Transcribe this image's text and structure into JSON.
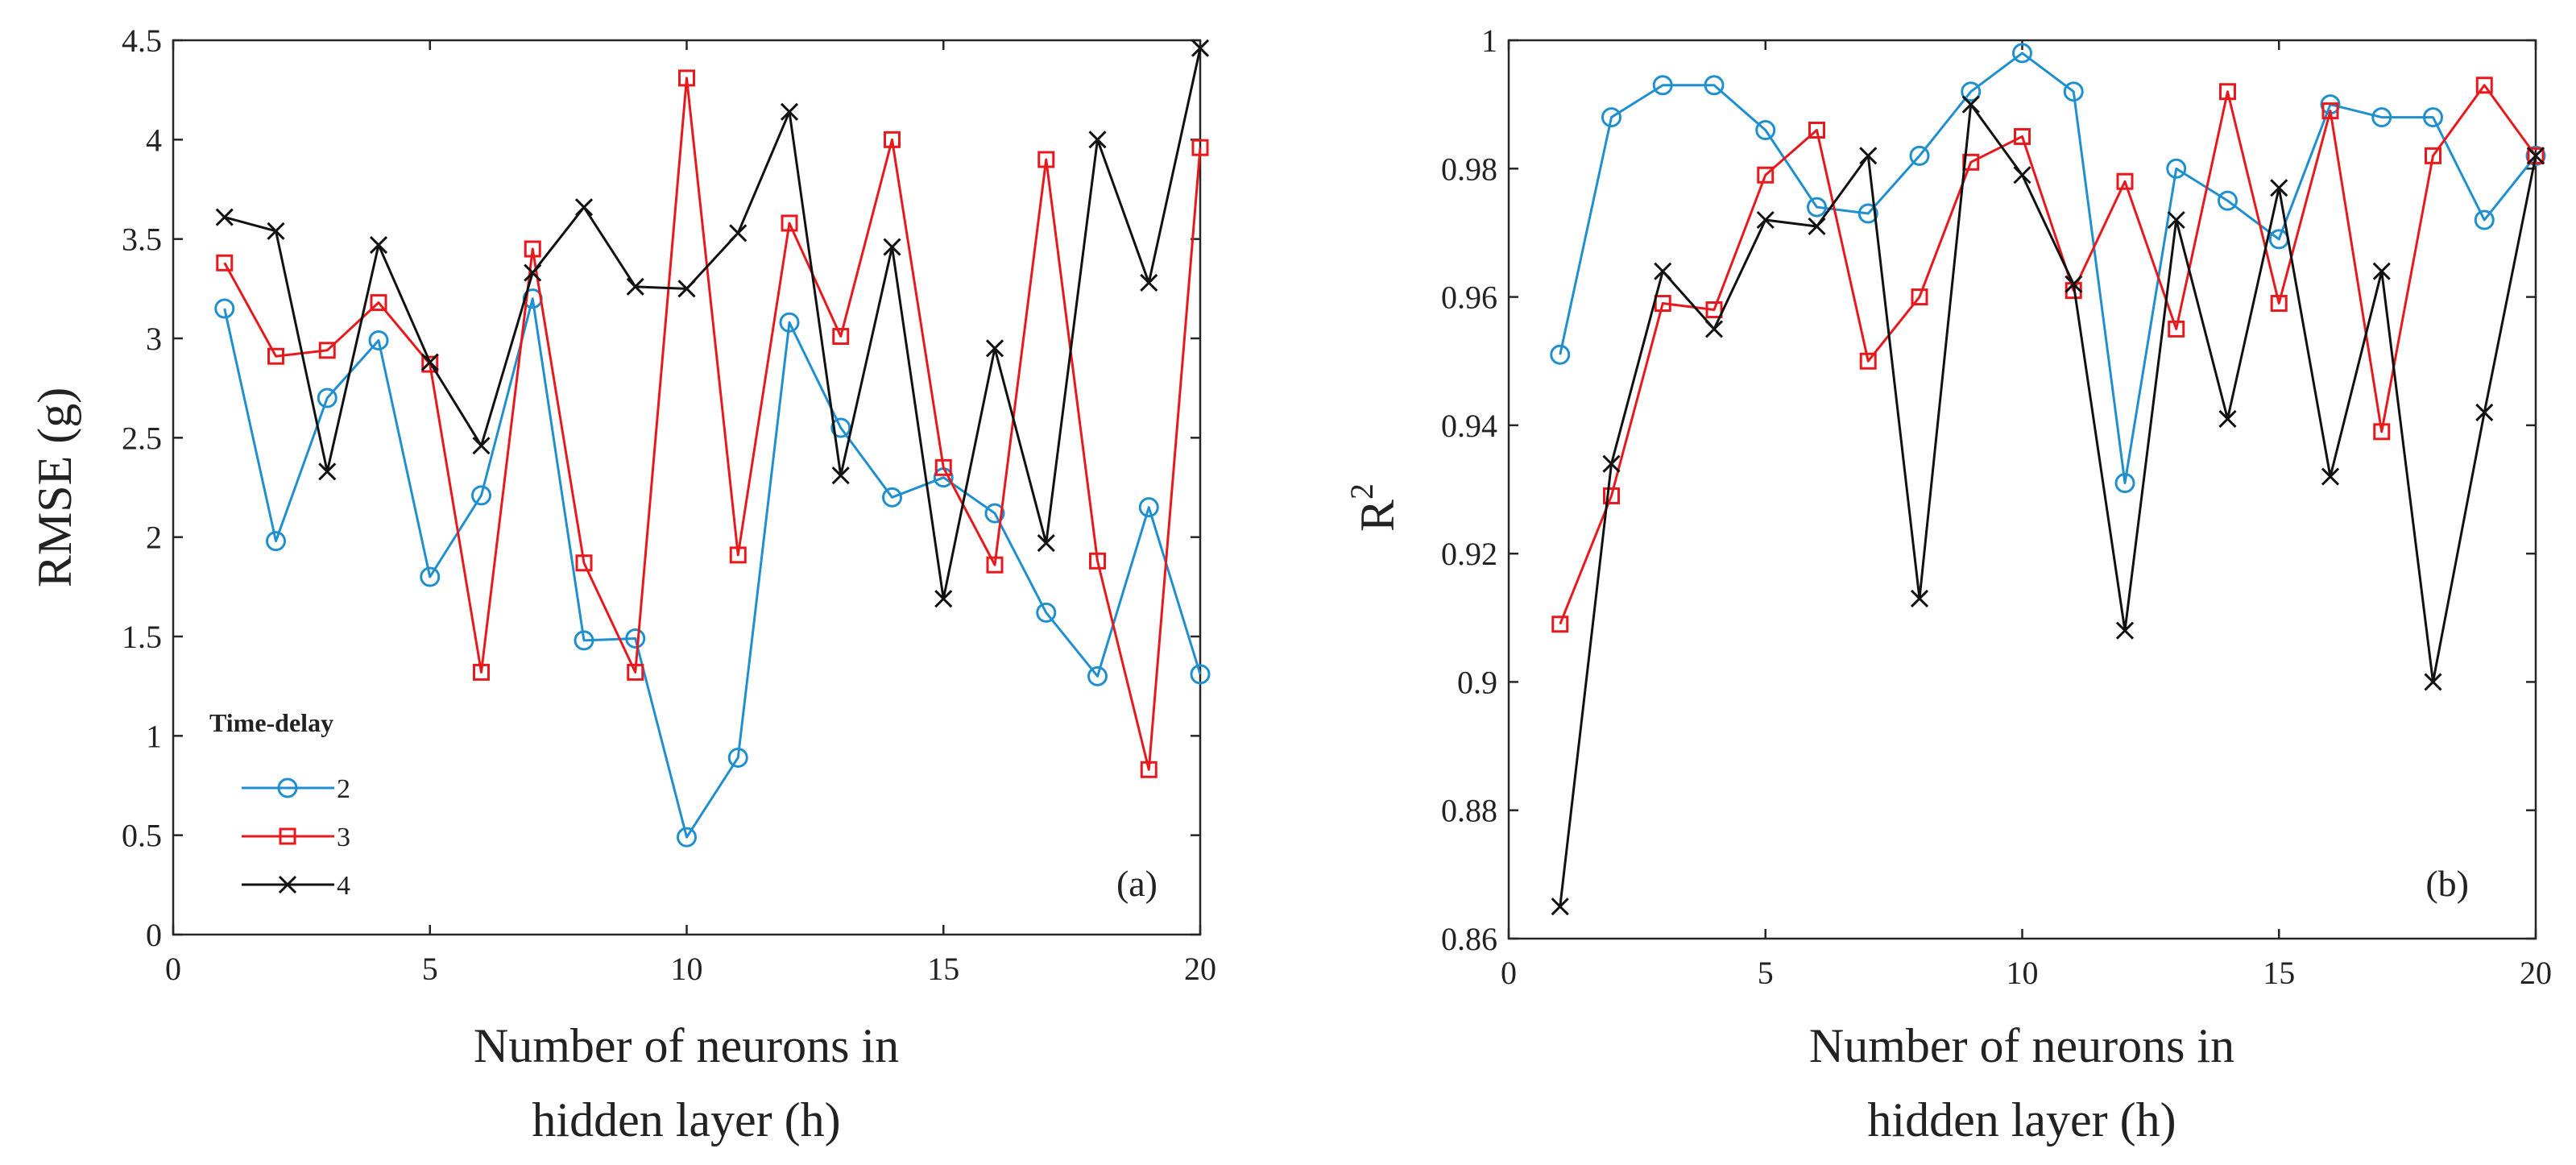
{
  "chart_data": [
    {
      "type": "line",
      "panel_label": "(a)",
      "xlabel": [
        "Number of neurons in",
        "hidden layer (h)"
      ],
      "ylabel": "RMSE (g)",
      "xlim": [
        0,
        20
      ],
      "ylim": [
        0,
        4.5
      ],
      "xticks": [
        0,
        5,
        10,
        15,
        20
      ],
      "xtick_labels": [
        "0",
        "5",
        "10",
        "15",
        "20"
      ],
      "yticks": [
        0,
        0.5,
        1,
        1.5,
        2,
        2.5,
        3,
        3.5,
        4,
        4.5
      ],
      "ytick_labels": [
        "0",
        "0.5",
        "1",
        "1.5",
        "2",
        "2.5",
        "3",
        "3.5",
        "4",
        "4.5"
      ],
      "grid": false,
      "legend": {
        "title": "Time-delay",
        "placement": "bottom-left"
      },
      "x": [
        1,
        2,
        3,
        4,
        5,
        6,
        7,
        8,
        9,
        10,
        11,
        12,
        13,
        14,
        15,
        16,
        17,
        18,
        19,
        20
      ],
      "series": [
        {
          "name": "2",
          "color": "#1f8fd0",
          "marker": "circle",
          "values": [
            3.15,
            1.98,
            2.7,
            2.99,
            1.8,
            2.21,
            3.2,
            1.48,
            1.49,
            0.49,
            0.89,
            3.08,
            2.55,
            2.2,
            2.3,
            2.12,
            1.62,
            1.3,
            2.15,
            1.31
          ]
        },
        {
          "name": "3",
          "color": "#e8191c",
          "marker": "square",
          "values": [
            3.38,
            2.91,
            2.94,
            3.18,
            2.87,
            1.32,
            3.45,
            1.87,
            1.32,
            4.31,
            1.91,
            3.58,
            3.01,
            4.0,
            2.35,
            1.86,
            3.9,
            1.88,
            0.83,
            3.96
          ]
        },
        {
          "name": "4",
          "color": "#111111",
          "marker": "x",
          "values": [
            3.61,
            3.54,
            2.33,
            3.47,
            2.88,
            2.46,
            3.33,
            3.66,
            3.26,
            3.25,
            3.53,
            4.14,
            2.31,
            3.46,
            1.69,
            2.95,
            1.97,
            4.0,
            3.28,
            4.46
          ]
        }
      ]
    },
    {
      "type": "line",
      "panel_label": "(b)",
      "xlabel": [
        "Number of neurons in",
        "hidden layer (h)"
      ],
      "ylabel": "R",
      "ylabel_superscript": "2",
      "xlim": [
        0,
        20
      ],
      "ylim": [
        0.86,
        1.0
      ],
      "xticks": [
        0,
        5,
        10,
        15,
        20
      ],
      "xtick_labels": [
        "0",
        "5",
        "10",
        "15",
        "20"
      ],
      "yticks": [
        0.86,
        0.88,
        0.9,
        0.92,
        0.94,
        0.96,
        0.98,
        1.0
      ],
      "ytick_labels": [
        "0.86",
        "0.88",
        "0.9",
        "0.92",
        "0.94",
        "0.96",
        "0.98",
        "1"
      ],
      "grid": false,
      "x": [
        1,
        2,
        3,
        4,
        5,
        6,
        7,
        8,
        9,
        10,
        11,
        12,
        13,
        14,
        15,
        16,
        17,
        18,
        19,
        20
      ],
      "series": [
        {
          "name": "2",
          "color": "#1f8fd0",
          "marker": "circle",
          "values": [
            0.951,
            0.988,
            0.993,
            0.993,
            0.986,
            0.974,
            0.973,
            0.982,
            0.992,
            0.998,
            0.992,
            0.931,
            0.98,
            0.975,
            0.969,
            0.99,
            0.988,
            0.988,
            0.972,
            0.982
          ]
        },
        {
          "name": "3",
          "color": "#e8191c",
          "marker": "square",
          "values": [
            0.909,
            0.929,
            0.959,
            0.958,
            0.979,
            0.986,
            0.95,
            0.96,
            0.981,
            0.985,
            0.961,
            0.978,
            0.955,
            0.992,
            0.959,
            0.989,
            0.939,
            0.982,
            0.993,
            0.982
          ]
        },
        {
          "name": "4",
          "color": "#111111",
          "marker": "x",
          "values": [
            0.865,
            0.934,
            0.964,
            0.955,
            0.972,
            0.971,
            0.982,
            0.913,
            0.99,
            0.979,
            0.962,
            0.908,
            0.972,
            0.941,
            0.977,
            0.932,
            0.964,
            0.9,
            0.942,
            0.982
          ]
        }
      ]
    }
  ]
}
